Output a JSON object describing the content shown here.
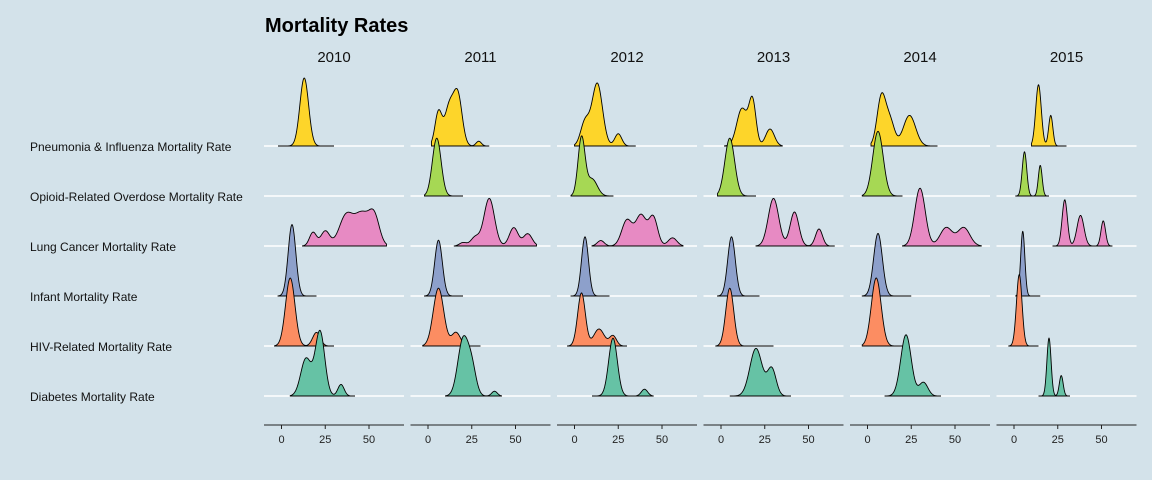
{
  "chart_data": {
    "type": "ridgeline",
    "title": "Mortality Rates",
    "panels": [
      "2010",
      "2011",
      "2012",
      "2013",
      "2014",
      "2015"
    ],
    "rows": [
      "Pneumonia & Influenza Mortality Rate",
      "Opioid-Related Overdose Mortality Rate",
      "Lung Cancer Mortality Rate",
      "Infant Mortality Rate",
      "HIV-Related Mortality Rate",
      "Diabetes Mortality Rate"
    ],
    "row_colors": {
      "Pneumonia & Influenza Mortality Rate": "#fdd52a",
      "Opioid-Related Overdose Mortality Rate": "#a6d854",
      "Lung Cancer Mortality Rate": "#e78ac3",
      "Infant Mortality Rate": "#8da0cb",
      "HIV-Related Mortality Rate": "#fc8d62",
      "Diabetes Mortality Rate": "#66c2a5"
    },
    "x_ticks": [
      0,
      25,
      50
    ],
    "xlim": [
      -10,
      70
    ],
    "densities": {
      "2010": {
        "Pneumonia & Influenza Mortality Rate": {
          "range": [
            -2,
            30
          ],
          "peaks": [
            [
              13,
              1.0,
              2.5
            ]
          ]
        },
        "Opioid-Related Overdose Mortality Rate": null,
        "Lung Cancer Mortality Rate": {
          "range": [
            12,
            60
          ],
          "peaks": [
            [
              18,
              0.2,
              2
            ],
            [
              25,
              0.22,
              2.5
            ],
            [
              37,
              0.45,
              4
            ],
            [
              46,
              0.45,
              4
            ],
            [
              53,
              0.42,
              3
            ]
          ]
        },
        "Infant Mortality Rate": {
          "range": [
            -2,
            20
          ],
          "peaks": [
            [
              6,
              1.05,
              2.2
            ]
          ]
        },
        "HIV-Related Mortality Rate": {
          "range": [
            -4,
            30
          ],
          "peaks": [
            [
              5,
              1.0,
              2.7
            ],
            [
              20,
              0.2,
              2.2
            ]
          ]
        },
        "Diabetes Mortality Rate": {
          "range": [
            5,
            42
          ],
          "peaks": [
            [
              14,
              0.55,
              3
            ],
            [
              22,
              0.95,
              2.7
            ],
            [
              34,
              0.17,
              1.8
            ]
          ]
        }
      },
      "2011": {
        "Pneumonia & Influenza Mortality Rate": {
          "range": [
            2,
            35
          ],
          "peaks": [
            [
              6,
              0.5,
              2
            ],
            [
              12,
              0.55,
              2.5
            ],
            [
              17,
              0.75,
              2.5
            ],
            [
              29,
              0.07,
              1.5
            ]
          ]
        },
        "Opioid-Related Overdose Mortality Rate": {
          "range": [
            -2,
            20
          ],
          "peaks": [
            [
              5,
              0.85,
              2.5
            ]
          ]
        },
        "Lung Cancer Mortality Rate": {
          "range": [
            15,
            62
          ],
          "peaks": [
            [
              20,
              0.05,
              2
            ],
            [
              27,
              0.13,
              2.5
            ],
            [
              35,
              0.7,
              3
            ],
            [
              49,
              0.27,
              2.5
            ],
            [
              57,
              0.18,
              2.5
            ]
          ]
        },
        "Infant Mortality Rate": {
          "range": [
            -2,
            20
          ],
          "peaks": [
            [
              6,
              0.82,
              2.2
            ]
          ]
        },
        "HIV-Related Mortality Rate": {
          "range": [
            -3,
            30
          ],
          "peaks": [
            [
              6,
              0.85,
              3
            ],
            [
              16,
              0.2,
              2.5
            ]
          ]
        },
        "Diabetes Mortality Rate": {
          "range": [
            10,
            42
          ],
          "peaks": [
            [
              20,
              0.82,
              3
            ],
            [
              25,
              0.4,
              2.5
            ],
            [
              38,
              0.07,
              1.6
            ]
          ]
        }
      },
      "2012": {
        "Pneumonia & Influenza Mortality Rate": {
          "range": [
            0,
            35
          ],
          "peaks": [
            [
              6,
              0.35,
              2.5
            ],
            [
              13,
              0.92,
              3
            ],
            [
              25,
              0.18,
              2
            ]
          ]
        },
        "Opioid-Related Overdose Mortality Rate": {
          "range": [
            -2,
            22
          ],
          "peaks": [
            [
              4,
              0.85,
              2
            ],
            [
              10,
              0.25,
              3
            ]
          ]
        },
        "Lung Cancer Mortality Rate": {
          "range": [
            10,
            62
          ],
          "peaks": [
            [
              15,
              0.08,
              2
            ],
            [
              30,
              0.38,
              3
            ],
            [
              38,
              0.45,
              3
            ],
            [
              45,
              0.42,
              2.5
            ],
            [
              56,
              0.12,
              2.5
            ]
          ]
        },
        "Infant Mortality Rate": {
          "range": [
            -2,
            20
          ],
          "peaks": [
            [
              6,
              0.87,
              2
            ]
          ]
        },
        "HIV-Related Mortality Rate": {
          "range": [
            -4,
            30
          ],
          "peaks": [
            [
              4,
              0.78,
              2.2
            ],
            [
              14,
              0.25,
              3
            ],
            [
              22,
              0.15,
              2
            ]
          ]
        },
        "Diabetes Mortality Rate": {
          "range": [
            10,
            45
          ],
          "peaks": [
            [
              22,
              0.85,
              2.5
            ],
            [
              40,
              0.1,
              1.8
            ]
          ]
        }
      },
      "2013": {
        "Pneumonia & Influenza Mortality Rate": {
          "range": [
            2,
            35
          ],
          "peaks": [
            [
              12,
              0.55,
              3
            ],
            [
              18,
              0.65,
              2
            ],
            [
              28,
              0.25,
              2.5
            ]
          ]
        },
        "Opioid-Related Overdose Mortality Rate": {
          "range": [
            -2,
            20
          ],
          "peaks": [
            [
              5,
              0.85,
              2.8
            ]
          ]
        },
        "Lung Cancer Mortality Rate": {
          "range": [
            20,
            65
          ],
          "peaks": [
            [
              30,
              0.7,
              3
            ],
            [
              42,
              0.5,
              2.5
            ],
            [
              56,
              0.25,
              2
            ]
          ]
        },
        "Infant Mortality Rate": {
          "range": [
            -2,
            22
          ],
          "peaks": [
            [
              6,
              0.87,
              2.2
            ]
          ]
        },
        "HIV-Related Mortality Rate": {
          "range": [
            -3,
            30
          ],
          "peaks": [
            [
              5,
              0.85,
              2.3
            ]
          ]
        },
        "Diabetes Mortality Rate": {
          "range": [
            5,
            40
          ],
          "peaks": [
            [
              20,
              0.7,
              3.5
            ],
            [
              29,
              0.4,
              2.5
            ]
          ]
        }
      },
      "2014": {
        "Pneumonia & Influenza Mortality Rate": {
          "range": [
            2,
            40
          ],
          "peaks": [
            [
              8,
              0.73,
              2.5
            ],
            [
              13,
              0.35,
              2.5
            ],
            [
              24,
              0.45,
              3.5
            ]
          ]
        },
        "Opioid-Related Overdose Mortality Rate": {
          "range": [
            -3,
            20
          ],
          "peaks": [
            [
              6,
              0.95,
              3
            ]
          ]
        },
        "Lung Cancer Mortality Rate": {
          "range": [
            20,
            65
          ],
          "peaks": [
            [
              30,
              0.85,
              3
            ],
            [
              45,
              0.27,
              3.5
            ],
            [
              55,
              0.27,
              3.5
            ]
          ]
        },
        "Infant Mortality Rate": {
          "range": [
            -3,
            25
          ],
          "peaks": [
            [
              6,
              0.92,
              2.5
            ]
          ]
        },
        "HIV-Related Mortality Rate": {
          "range": [
            -3,
            22
          ],
          "peaks": [
            [
              5,
              1.0,
              2.8
            ]
          ]
        },
        "Diabetes Mortality Rate": {
          "range": [
            10,
            42
          ],
          "peaks": [
            [
              22,
              0.9,
              3
            ],
            [
              32,
              0.2,
              2.5
            ]
          ]
        }
      },
      "2015": {
        "Pneumonia & Influenza Mortality Rate": {
          "range": [
            10,
            30
          ],
          "peaks": [
            [
              14,
              0.9,
              1.6
            ],
            [
              21,
              0.45,
              1.2
            ]
          ]
        },
        "Opioid-Related Overdose Mortality Rate": {
          "range": [
            1,
            20
          ],
          "peaks": [
            [
              6,
              0.65,
              1.3
            ],
            [
              15,
              0.45,
              1.1
            ]
          ]
        },
        "Lung Cancer Mortality Rate": {
          "range": [
            22,
            56
          ],
          "peaks": [
            [
              29,
              0.68,
              1.5
            ],
            [
              38,
              0.45,
              2
            ],
            [
              51,
              0.37,
              1.3
            ]
          ]
        },
        "Infant Mortality Rate": {
          "range": [
            1,
            15
          ],
          "peaks": [
            [
              5,
              0.95,
              1.2
            ]
          ]
        },
        "HIV-Related Mortality Rate": {
          "range": [
            -3,
            14
          ],
          "peaks": [
            [
              3,
              1.05,
              1.6
            ]
          ]
        },
        "Diabetes Mortality Rate": {
          "range": [
            14,
            32
          ],
          "peaks": [
            [
              20,
              0.85,
              1.2
            ],
            [
              27,
              0.3,
              1.1
            ]
          ]
        }
      }
    }
  }
}
